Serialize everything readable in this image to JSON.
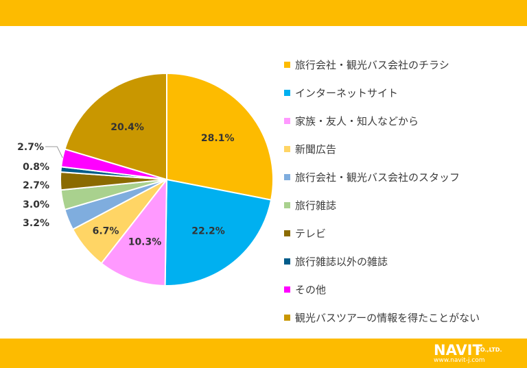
{
  "colors": {
    "band": "#fdbb00",
    "label_text": "#333333",
    "leader": "#999999",
    "logo_text": "#ffffff"
  },
  "chart_data": {
    "type": "pie",
    "start_angle_deg": 0,
    "direction": "clockwise",
    "unit": "%",
    "slices": [
      {
        "label": "旅行会社・観光バス会社のチラシ",
        "value": 28.1,
        "display": "28.1%",
        "color": "#fdbb00"
      },
      {
        "label": "インターネットサイト",
        "value": 22.2,
        "display": "22.2%",
        "color": "#00b0f0"
      },
      {
        "label": "家族・友人・知人などから",
        "value": 10.3,
        "display": "10.3%",
        "color": "#ff99ff"
      },
      {
        "label": "新聞広告",
        "value": 6.7,
        "display": "6.7%",
        "color": "#ffd565"
      },
      {
        "label": "旅行会社・観光バス会社のスタッフ",
        "value": 3.2,
        "display": "3.2%",
        "color": "#7fadde"
      },
      {
        "label": "旅行雑誌",
        "value": 3.0,
        "display": "3.0%",
        "color": "#a9d18e"
      },
      {
        "label": "テレビ",
        "value": 2.7,
        "display": "2.7%",
        "color": "#8b6b00"
      },
      {
        "label": "旅行雑誌以外の雑誌",
        "value": 0.8,
        "display": "0.8%",
        "color": "#005c8a"
      },
      {
        "label": "その他",
        "value": 2.7,
        "display": "2.7%",
        "color": "#ff00ff"
      },
      {
        "label": "観光バスツアーの情報を得たことがない",
        "value": 20.4,
        "display": "20.4%",
        "color": "#c99700"
      }
    ],
    "legend_position": "right"
  },
  "logo": {
    "main": "NAVIT",
    "suffix": "CO.,LTD.",
    "url": "www.navit-j.com"
  }
}
